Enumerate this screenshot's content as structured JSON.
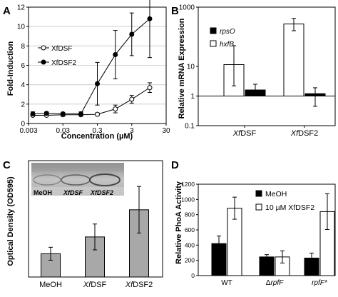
{
  "panels": [
    {
      "letter": "A"
    },
    {
      "letter": "B"
    },
    {
      "letter": "C",
      "inset_labels": [
        "MeOH",
        "XfDSF",
        "XfDSF2"
      ]
    },
    {
      "letter": "D"
    }
  ],
  "chart_data": [
    {
      "panel": "A",
      "type": "line",
      "xscale": "log",
      "xlabel": "Concentration (µM)",
      "ylabel": "Fold-Induction",
      "xlim": [
        0.003,
        30
      ],
      "ylim": [
        0,
        12
      ],
      "xticks": [
        "0.003",
        "0.03",
        "0.3",
        "3",
        "30"
      ],
      "yticks": [
        "0",
        "2",
        "4",
        "6",
        "8",
        "10",
        "12"
      ],
      "legend_position": "middle-left",
      "series": [
        {
          "name": "XfDSF",
          "marker": "open-circle",
          "x": [
            0.004,
            0.01,
            0.03,
            0.1,
            0.3,
            1,
            3,
            10
          ],
          "y": [
            0.85,
            0.85,
            0.9,
            0.9,
            0.95,
            1.5,
            2.5,
            3.7
          ],
          "err": [
            0.1,
            0.1,
            0.15,
            0.1,
            0.15,
            0.4,
            0.4,
            0.5
          ]
        },
        {
          "name": "XfDSF2",
          "marker": "filled-circle",
          "x": [
            0.004,
            0.01,
            0.03,
            0.1,
            0.3,
            1,
            3,
            10
          ],
          "y": [
            1.0,
            1.05,
            1.0,
            1.0,
            4.1,
            7.1,
            9.2,
            10.8
          ],
          "err": [
            0.2,
            0.15,
            0.15,
            0.2,
            2.2,
            2.5,
            2.2,
            4.0
          ]
        }
      ]
    },
    {
      "panel": "B",
      "type": "bar",
      "yscale": "log",
      "ylabel": "Relative mRNA Expression",
      "ylim": [
        0.1,
        1000
      ],
      "yticks": [
        "0.1",
        "1",
        "10",
        "1000"
      ],
      "categories": [
        "XfDSF",
        "XfDSF2"
      ],
      "legend_position": "top-left",
      "series": [
        {
          "name": "rpsO",
          "color": "#000000",
          "values": [
            1.6,
            1.2
          ],
          "err_low": [
            1.1,
            0.45
          ],
          "err_high": [
            2.5,
            1.9
          ]
        },
        {
          "name": "hxfB",
          "color": "#ffffff",
          "values": [
            11.5,
            270
          ],
          "err_low": [
            2.2,
            160
          ],
          "err_high": [
            50,
            420
          ]
        }
      ]
    },
    {
      "panel": "C",
      "type": "bar",
      "ylabel": "Optical Density (OD595)",
      "ylim": [
        0,
        0.9
      ],
      "categories": [
        "MeOH",
        "XfDSF",
        "XfDSF2"
      ],
      "series": [
        {
          "color": "#a8a8a8",
          "values": [
            0.18,
            0.31,
            0.52
          ],
          "err": [
            0.05,
            0.1,
            0.18
          ]
        }
      ]
    },
    {
      "panel": "D",
      "type": "bar",
      "ylabel": "Relative PhoA Activity",
      "ylim": [
        0,
        1200
      ],
      "yticks": [
        "0",
        "200",
        "400",
        "600",
        "800",
        "1000",
        "1200"
      ],
      "categories": [
        "WT",
        "ΔrpfF",
        "rpfF*"
      ],
      "legend_position": "top-left",
      "series": [
        {
          "name": "MeOH",
          "color": "#000000",
          "values": [
            420,
            245,
            230
          ],
          "err": [
            100,
            30,
            65
          ]
        },
        {
          "name": "10 µM XfDSF2",
          "color": "#ffffff",
          "values": [
            885,
            245,
            840
          ],
          "err": [
            145,
            80,
            235
          ]
        }
      ]
    }
  ]
}
